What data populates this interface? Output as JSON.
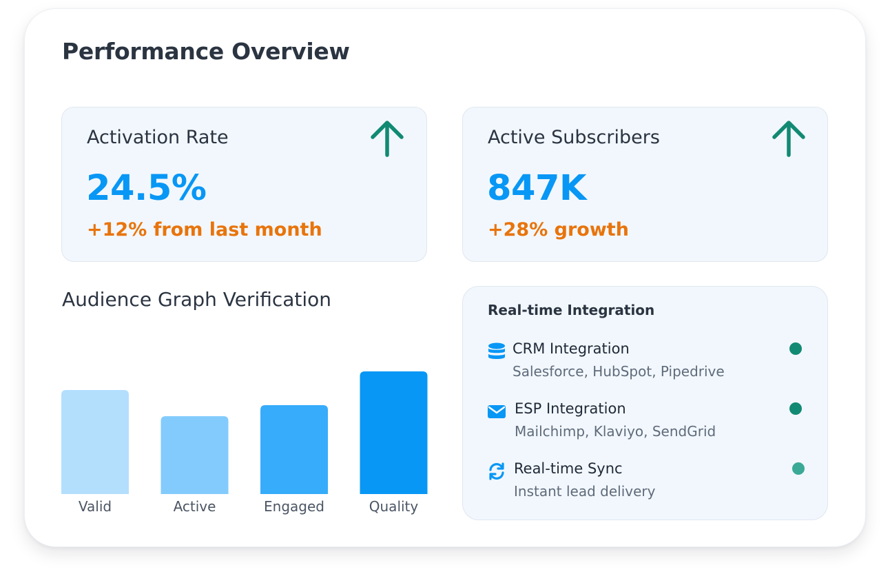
{
  "title": "Performance Overview",
  "colors": {
    "accent_blue": "#0897f5",
    "growth_orange": "#e8740c",
    "trend_green": "#128a73",
    "card_bg": "#f2f7fd"
  },
  "stats": [
    {
      "label": "Activation Rate",
      "value": "24.5%",
      "change": "+12% from last month",
      "icon": "arrow-up-icon"
    },
    {
      "label": "Active Subscribers",
      "value": "847K",
      "change": "+28% growth",
      "icon": "arrow-up-icon"
    }
  ],
  "chart_section": {
    "title": "Audience Graph Verification"
  },
  "chart_data": {
    "type": "bar",
    "title": "Audience Graph Verification",
    "categories": [
      "Valid",
      "Active",
      "Engaged",
      "Quality"
    ],
    "values": [
      151,
      113,
      129,
      178
    ],
    "colors": [
      "#b3dffd",
      "#83cbfc",
      "#36acfa",
      "#0897f5"
    ],
    "grid": false,
    "ylim": [
      0,
      180
    ],
    "xlabel": "",
    "ylabel": ""
  },
  "integrations": {
    "title": "Real-time Integration",
    "items": [
      {
        "name": "CRM Integration",
        "desc": "Salesforce, HubSpot, Pipedrive",
        "icon": "database-icon",
        "status_color": "#128a73"
      },
      {
        "name": "ESP Integration",
        "desc": "Mailchimp, Klaviyo, SendGrid",
        "icon": "envelope-icon",
        "status_color": "#128a73"
      },
      {
        "name": "Real-time Sync",
        "desc": "Instant lead delivery",
        "icon": "sync-icon",
        "status_color": "#3aa996"
      }
    ]
  }
}
